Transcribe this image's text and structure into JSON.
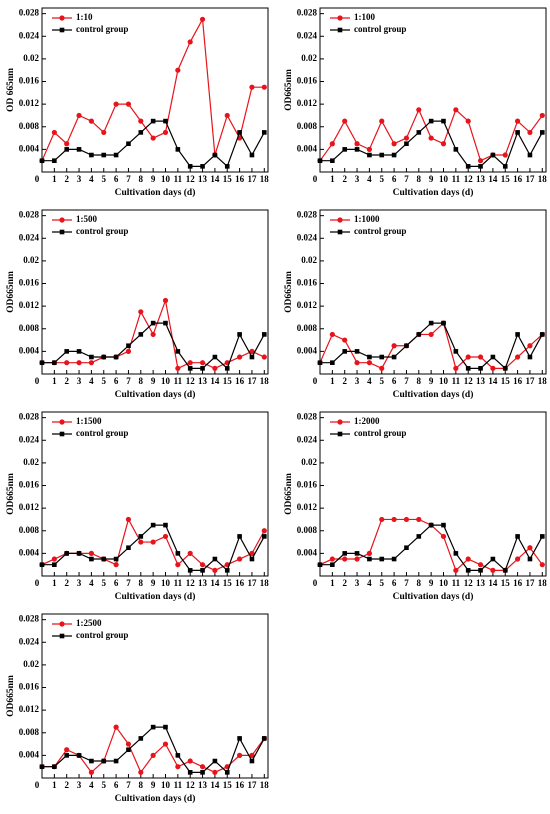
{
  "chart_data": [
    {
      "type": "line",
      "xlabel": "Cultivation days (d)",
      "ylabel": "OD 665nm",
      "x": [
        0,
        1,
        2,
        3,
        4,
        5,
        6,
        7,
        8,
        9,
        10,
        11,
        12,
        13,
        14,
        15,
        16,
        17,
        18
      ],
      "xlim": [
        0,
        18.3
      ],
      "xticks": [
        0,
        1,
        2,
        3,
        4,
        5,
        6,
        7,
        8,
        9,
        10,
        11,
        12,
        13,
        14,
        15,
        16,
        17,
        18
      ],
      "ylim": [
        0,
        0.029
      ],
      "yticks": [
        0.004,
        0.008,
        0.012,
        0.016,
        0.02,
        0.024,
        0.028
      ],
      "series": [
        {
          "name": "1:10",
          "color": "#e8141c",
          "marker": "circle",
          "values": [
            0.002,
            0.007,
            0.005,
            0.01,
            0.009,
            0.007,
            0.012,
            0.012,
            0.009,
            0.006,
            0.007,
            0.018,
            0.023,
            0.027,
            0.003,
            0.01,
            0.006,
            0.015,
            0.015
          ]
        },
        {
          "name": "control group",
          "color": "#000000",
          "marker": "square",
          "values": [
            0.002,
            0.002,
            0.004,
            0.004,
            0.003,
            0.003,
            0.003,
            0.005,
            0.007,
            0.009,
            0.009,
            0.004,
            0.001,
            0.001,
            0.003,
            0.001,
            0.007,
            0.003,
            0.007
          ]
        }
      ]
    },
    {
      "type": "line",
      "xlabel": "Cultivation days (d)",
      "ylabel": "OD665nm",
      "x": [
        0,
        1,
        2,
        3,
        4,
        5,
        6,
        7,
        8,
        9,
        10,
        11,
        12,
        13,
        14,
        15,
        16,
        17,
        18
      ],
      "xlim": [
        0,
        18.3
      ],
      "xticks": [
        0,
        1,
        2,
        3,
        4,
        5,
        6,
        7,
        8,
        9,
        10,
        11,
        12,
        13,
        14,
        15,
        16,
        17,
        18
      ],
      "ylim": [
        0,
        0.029
      ],
      "yticks": [
        0.004,
        0.008,
        0.012,
        0.016,
        0.02,
        0.024,
        0.028
      ],
      "series": [
        {
          "name": "1:100",
          "color": "#e8141c",
          "marker": "circle",
          "values": [
            0.002,
            0.005,
            0.009,
            0.005,
            0.004,
            0.009,
            0.005,
            0.006,
            0.011,
            0.006,
            0.005,
            0.011,
            0.009,
            0.002,
            0.003,
            0.003,
            0.009,
            0.007,
            0.01
          ]
        },
        {
          "name": "control group",
          "color": "#000000",
          "marker": "square",
          "values": [
            0.002,
            0.002,
            0.004,
            0.004,
            0.003,
            0.003,
            0.003,
            0.005,
            0.007,
            0.009,
            0.009,
            0.004,
            0.001,
            0.001,
            0.003,
            0.001,
            0.007,
            0.003,
            0.007
          ]
        }
      ]
    },
    {
      "type": "line",
      "xlabel": "Cultivation days (d)",
      "ylabel": "OD665nm",
      "x": [
        0,
        1,
        2,
        3,
        4,
        5,
        6,
        7,
        8,
        9,
        10,
        11,
        12,
        13,
        14,
        15,
        16,
        17,
        18
      ],
      "xlim": [
        0,
        18.3
      ],
      "xticks": [
        0,
        1,
        2,
        3,
        4,
        5,
        6,
        7,
        8,
        9,
        10,
        11,
        12,
        13,
        14,
        15,
        16,
        17,
        18
      ],
      "ylim": [
        0,
        0.029
      ],
      "yticks": [
        0.004,
        0.008,
        0.012,
        0.016,
        0.02,
        0.024,
        0.028
      ],
      "series": [
        {
          "name": "1:500",
          "color": "#e8141c",
          "marker": "circle",
          "values": [
            0.002,
            0.002,
            0.002,
            0.002,
            0.002,
            0.003,
            0.003,
            0.004,
            0.011,
            0.007,
            0.013,
            0.001,
            0.002,
            0.002,
            0.001,
            0.002,
            0.003,
            0.004,
            0.003
          ]
        },
        {
          "name": "control group",
          "color": "#000000",
          "marker": "square",
          "values": [
            0.002,
            0.002,
            0.004,
            0.004,
            0.003,
            0.003,
            0.003,
            0.005,
            0.007,
            0.009,
            0.009,
            0.004,
            0.001,
            0.001,
            0.003,
            0.001,
            0.007,
            0.003,
            0.007
          ]
        }
      ]
    },
    {
      "type": "line",
      "xlabel": "Cultivation days (d)",
      "ylabel": "OD665nm",
      "x": [
        0,
        1,
        2,
        3,
        4,
        5,
        6,
        7,
        8,
        9,
        10,
        11,
        12,
        13,
        14,
        15,
        16,
        17,
        18
      ],
      "xlim": [
        0,
        18.3
      ],
      "xticks": [
        0,
        1,
        2,
        3,
        4,
        5,
        6,
        7,
        8,
        9,
        10,
        11,
        12,
        13,
        14,
        15,
        16,
        17,
        18
      ],
      "ylim": [
        0,
        0.029
      ],
      "yticks": [
        0.004,
        0.008,
        0.012,
        0.016,
        0.02,
        0.024,
        0.028
      ],
      "series": [
        {
          "name": "1:1000",
          "color": "#e8141c",
          "marker": "circle",
          "values": [
            0.002,
            0.007,
            0.006,
            0.002,
            0.002,
            0.001,
            0.005,
            0.005,
            0.007,
            0.007,
            0.009,
            0.001,
            0.003,
            0.003,
            0.001,
            0.001,
            0.003,
            0.005,
            0.007
          ]
        },
        {
          "name": "control group",
          "color": "#000000",
          "marker": "square",
          "values": [
            0.002,
            0.002,
            0.004,
            0.004,
            0.003,
            0.003,
            0.003,
            0.005,
            0.007,
            0.009,
            0.009,
            0.004,
            0.001,
            0.001,
            0.003,
            0.001,
            0.007,
            0.003,
            0.007
          ]
        }
      ]
    },
    {
      "type": "line",
      "xlabel": "Cultivation days (d)",
      "ylabel": "OD665nm",
      "x": [
        0,
        1,
        2,
        3,
        4,
        5,
        6,
        7,
        8,
        9,
        10,
        11,
        12,
        13,
        14,
        15,
        16,
        17,
        18
      ],
      "xlim": [
        0,
        18.3
      ],
      "xticks": [
        0,
        1,
        2,
        3,
        4,
        5,
        6,
        7,
        8,
        9,
        10,
        11,
        12,
        13,
        14,
        15,
        16,
        17,
        18
      ],
      "ylim": [
        0,
        0.029
      ],
      "yticks": [
        0.004,
        0.008,
        0.012,
        0.016,
        0.02,
        0.024,
        0.028
      ],
      "series": [
        {
          "name": "1:1500",
          "color": "#e8141c",
          "marker": "circle",
          "values": [
            0.002,
            0.003,
            0.004,
            0.004,
            0.004,
            0.003,
            0.002,
            0.01,
            0.006,
            0.006,
            0.007,
            0.002,
            0.004,
            0.002,
            0.001,
            0.002,
            0.003,
            0.004,
            0.008
          ]
        },
        {
          "name": "control group",
          "color": "#000000",
          "marker": "square",
          "values": [
            0.002,
            0.002,
            0.004,
            0.004,
            0.003,
            0.003,
            0.003,
            0.005,
            0.007,
            0.009,
            0.009,
            0.004,
            0.001,
            0.001,
            0.003,
            0.001,
            0.007,
            0.003,
            0.007
          ]
        }
      ]
    },
    {
      "type": "line",
      "xlabel": "Cultivation days (d)",
      "ylabel": "OD665nm",
      "x": [
        0,
        1,
        2,
        3,
        4,
        5,
        6,
        7,
        8,
        9,
        10,
        11,
        12,
        13,
        14,
        15,
        16,
        17,
        18
      ],
      "xlim": [
        0,
        18.3
      ],
      "xticks": [
        0,
        1,
        2,
        3,
        4,
        5,
        6,
        7,
        8,
        9,
        10,
        11,
        12,
        13,
        14,
        15,
        16,
        17,
        18
      ],
      "ylim": [
        0,
        0.029
      ],
      "yticks": [
        0.004,
        0.008,
        0.012,
        0.016,
        0.02,
        0.024,
        0.028
      ],
      "series": [
        {
          "name": "1:2000",
          "color": "#e8141c",
          "marker": "circle",
          "values": [
            0.002,
            0.003,
            0.003,
            0.003,
            0.004,
            0.01,
            0.01,
            0.01,
            0.01,
            0.009,
            0.007,
            0.001,
            0.003,
            0.002,
            0.001,
            0.001,
            0.003,
            0.005,
            0.002
          ]
        },
        {
          "name": "control group",
          "color": "#000000",
          "marker": "square",
          "values": [
            0.002,
            0.002,
            0.004,
            0.004,
            0.003,
            0.003,
            0.003,
            0.005,
            0.007,
            0.009,
            0.009,
            0.004,
            0.001,
            0.001,
            0.003,
            0.001,
            0.007,
            0.003,
            0.007
          ]
        }
      ]
    },
    {
      "type": "line",
      "xlabel": "Cultivation days (d)",
      "ylabel": "OD665nm",
      "x": [
        0,
        1,
        2,
        3,
        4,
        5,
        6,
        7,
        8,
        9,
        10,
        11,
        12,
        13,
        14,
        15,
        16,
        17,
        18
      ],
      "xlim": [
        0,
        18.3
      ],
      "xticks": [
        0,
        1,
        2,
        3,
        4,
        5,
        6,
        7,
        8,
        9,
        10,
        11,
        12,
        13,
        14,
        15,
        16,
        17,
        18
      ],
      "ylim": [
        0,
        0.029
      ],
      "yticks": [
        0.004,
        0.008,
        0.012,
        0.016,
        0.02,
        0.024,
        0.028
      ],
      "series": [
        {
          "name": "1:2500",
          "color": "#e8141c",
          "marker": "circle",
          "values": [
            0.002,
            0.002,
            0.005,
            0.004,
            0.001,
            0.003,
            0.009,
            0.006,
            0.001,
            0.004,
            0.006,
            0.002,
            0.003,
            0.002,
            0.001,
            0.002,
            0.004,
            0.004,
            0.007
          ]
        },
        {
          "name": "control group",
          "color": "#000000",
          "marker": "square",
          "values": [
            0.002,
            0.002,
            0.004,
            0.004,
            0.003,
            0.003,
            0.003,
            0.005,
            0.007,
            0.009,
            0.009,
            0.004,
            0.001,
            0.001,
            0.003,
            0.001,
            0.007,
            0.003,
            0.007
          ]
        }
      ]
    }
  ]
}
